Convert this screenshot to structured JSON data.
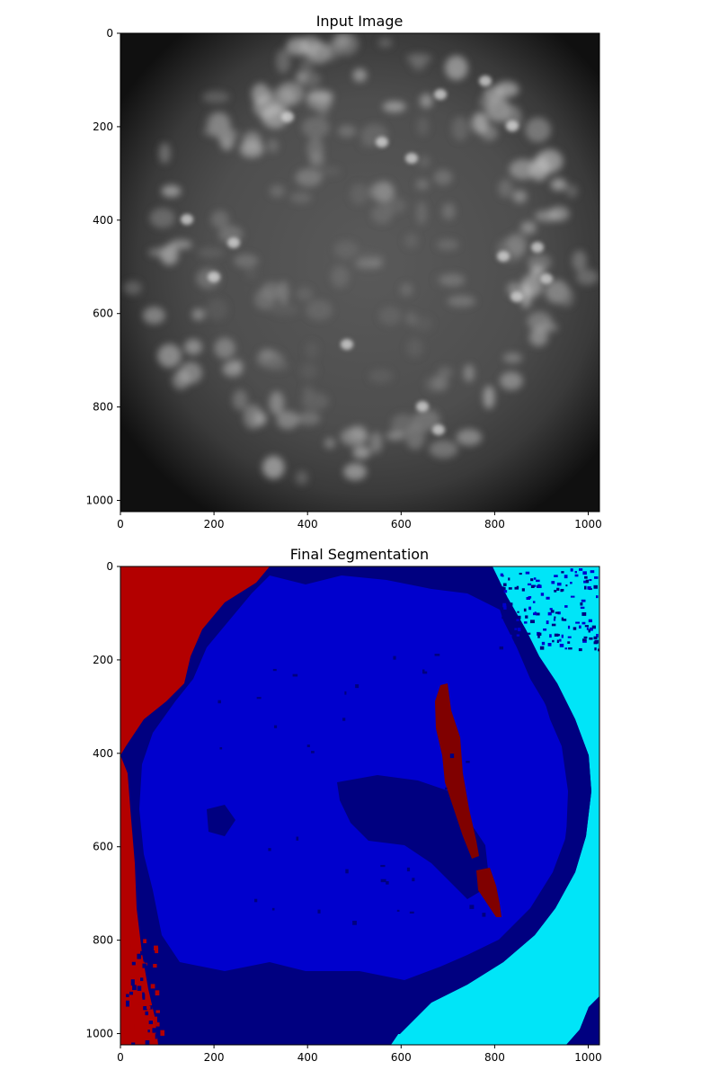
{
  "chart_data": [
    {
      "type": "image",
      "title": "Input Image",
      "xlim": [
        0,
        1024
      ],
      "ylim": [
        1024,
        0
      ],
      "x_ticks": [
        "0",
        "200",
        "400",
        "600",
        "800",
        "1000"
      ],
      "y_ticks": [
        "0",
        "200",
        "400",
        "600",
        "800",
        "1000"
      ],
      "colormap": "gray",
      "colors": {
        "background": "#4d4d4d",
        "vignette_edge": "#0f0f0f",
        "bright_spot": "#e6e6e6"
      }
    },
    {
      "type": "heatmap",
      "title": "Final Segmentation",
      "xlim": [
        0,
        1024
      ],
      "ylim": [
        1024,
        0
      ],
      "x_ticks": [
        "0",
        "200",
        "400",
        "600",
        "800",
        "1000"
      ],
      "y_ticks": [
        "0",
        "200",
        "400",
        "600",
        "800",
        "1000"
      ],
      "colormap": "jet",
      "colors": {
        "dark_red": "#b30000",
        "maroon": "#800000",
        "navy": "#000080",
        "blue": "#0000cd",
        "cyan": "#00e5f8"
      }
    }
  ]
}
